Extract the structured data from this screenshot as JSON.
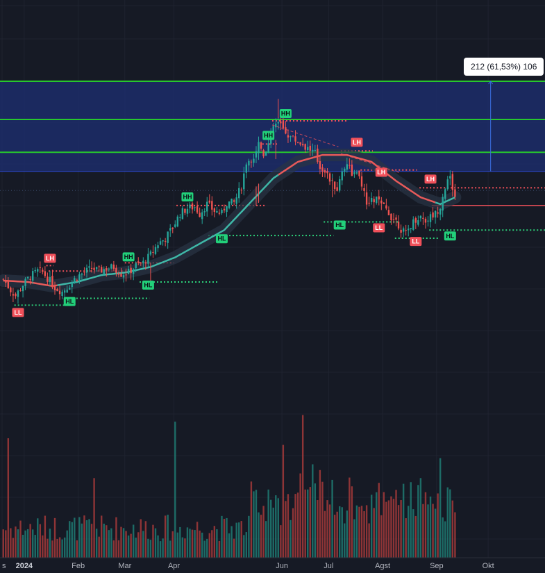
{
  "measure_label": "212 (61,53%) 106",
  "chart_data": {
    "type": "candlestick",
    "x_axis_labels": [
      {
        "text": "s",
        "index": 0,
        "bold": false
      },
      {
        "text": "2024",
        "index": 9,
        "bold": true
      },
      {
        "text": "Feb",
        "index": 31,
        "bold": false
      },
      {
        "text": "Mar",
        "index": 50,
        "bold": false
      },
      {
        "text": "Apr",
        "index": 70,
        "bold": false
      },
      {
        "text": "Jun",
        "index": 114,
        "bold": false
      },
      {
        "text": "Jul",
        "index": 133,
        "bold": false
      },
      {
        "text": "Agst",
        "index": 155,
        "bold": false
      },
      {
        "text": "Sep",
        "index": 177,
        "bold": false
      },
      {
        "text": "Okt",
        "index": 198,
        "bold": false
      }
    ],
    "ylim": [
      158,
      400
    ],
    "price_anchors": [
      [
        0,
        246
      ],
      [
        3,
        238
      ],
      [
        5,
        234
      ],
      [
        8,
        242
      ],
      [
        11,
        248
      ],
      [
        14,
        252
      ],
      [
        16,
        251
      ],
      [
        18,
        247
      ],
      [
        21,
        240
      ],
      [
        24,
        237
      ],
      [
        27,
        242
      ],
      [
        30,
        248
      ],
      [
        33,
        251
      ],
      [
        36,
        254
      ],
      [
        39,
        252
      ],
      [
        42,
        254
      ],
      [
        45,
        255
      ],
      [
        48,
        250
      ],
      [
        51,
        251
      ],
      [
        54,
        256
      ],
      [
        57,
        258
      ],
      [
        60,
        264
      ],
      [
        63,
        272
      ],
      [
        66,
        276
      ],
      [
        69,
        284
      ],
      [
        72,
        294
      ],
      [
        75,
        298
      ],
      [
        78,
        299
      ],
      [
        80,
        294
      ],
      [
        83,
        301
      ],
      [
        86,
        296
      ],
      [
        89,
        294
      ],
      [
        91,
        302
      ],
      [
        94,
        302
      ],
      [
        97,
        314
      ],
      [
        99,
        332
      ],
      [
        102,
        336
      ],
      [
        104,
        346
      ],
      [
        106,
        338
      ],
      [
        108,
        345
      ],
      [
        110,
        358
      ],
      [
        112,
        360
      ],
      [
        114,
        356
      ],
      [
        116,
        352
      ],
      [
        118,
        349
      ],
      [
        121,
        346
      ],
      [
        124,
        342
      ],
      [
        127,
        338
      ],
      [
        129,
        328
      ],
      [
        131,
        326
      ],
      [
        132,
        322
      ],
      [
        134,
        316
      ],
      [
        136,
        312
      ],
      [
        138,
        325
      ],
      [
        140,
        332
      ],
      [
        142,
        324
      ],
      [
        144,
        322
      ],
      [
        146,
        316
      ],
      [
        148,
        300
      ],
      [
        150,
        303
      ],
      [
        152,
        305
      ],
      [
        154,
        300
      ],
      [
        156,
        297
      ],
      [
        158,
        292
      ],
      [
        160,
        289
      ],
      [
        162,
        283
      ],
      [
        164,
        279
      ],
      [
        166,
        286
      ],
      [
        168,
        290
      ],
      [
        170,
        292
      ],
      [
        172,
        289
      ],
      [
        174,
        292
      ],
      [
        176,
        294
      ],
      [
        178,
        300
      ],
      [
        180,
        314
      ],
      [
        182,
        320
      ],
      [
        184,
        306
      ]
    ],
    "last_index": 184,
    "total_slots": 222,
    "moving_average": [
      [
        0,
        245
      ],
      [
        10,
        244
      ],
      [
        20,
        241
      ],
      [
        30,
        244
      ],
      [
        40,
        249
      ],
      [
        50,
        251
      ],
      [
        60,
        255
      ],
      [
        70,
        262
      ],
      [
        80,
        272
      ],
      [
        90,
        282
      ],
      [
        100,
        301
      ],
      [
        110,
        320
      ],
      [
        120,
        332
      ],
      [
        130,
        337
      ],
      [
        140,
        337
      ],
      [
        150,
        332
      ],
      [
        160,
        318
      ],
      [
        170,
        306
      ],
      [
        178,
        301
      ],
      [
        184,
        306
      ]
    ],
    "structure_labels": [
      {
        "text": "LL",
        "index": 6,
        "price": 226,
        "color": "red",
        "pos": "below"
      },
      {
        "text": "LH",
        "index": 19,
        "price": 257,
        "color": "red",
        "pos": "above"
      },
      {
        "text": "HL",
        "index": 27,
        "price": 234,
        "color": "green",
        "pos": "below"
      },
      {
        "text": "HH",
        "index": 51,
        "price": 258,
        "color": "green",
        "pos": "above"
      },
      {
        "text": "HL",
        "index": 59,
        "price": 246,
        "color": "green",
        "pos": "below"
      },
      {
        "text": "HH",
        "index": 75,
        "price": 302,
        "color": "green",
        "pos": "above"
      },
      {
        "text": "HL",
        "index": 89,
        "price": 280,
        "color": "green",
        "pos": "below"
      },
      {
        "text": "HH",
        "index": 108,
        "price": 347,
        "color": "green",
        "pos": "above"
      },
      {
        "text": "HH",
        "index": 115,
        "price": 363,
        "color": "green",
        "pos": "above"
      },
      {
        "text": "HL",
        "index": 137,
        "price": 290,
        "color": "green",
        "pos": "below"
      },
      {
        "text": "LH",
        "index": 144,
        "price": 342,
        "color": "red",
        "pos": "above"
      },
      {
        "text": "LH",
        "index": 154,
        "price": 320,
        "color": "red",
        "pos": "above"
      },
      {
        "text": "LL",
        "index": 153,
        "price": 288,
        "color": "red",
        "pos": "below"
      },
      {
        "text": "LH",
        "index": 174,
        "price": 315,
        "color": "red",
        "pos": "above"
      },
      {
        "text": "LL",
        "index": 168,
        "price": 278,
        "color": "red",
        "pos": "below"
      },
      {
        "text": "HL",
        "index": 182,
        "price": 282,
        "color": "green",
        "pos": "below"
      }
    ],
    "horizontal_levels": [
      {
        "price": 391,
        "color": "#27c72d",
        "style": "solid",
        "width": 2
      },
      {
        "price": 363,
        "color": "#27c72d",
        "style": "solid",
        "width": 2
      },
      {
        "price": 339,
        "color": "#27c72d",
        "style": "solid",
        "width": 2
      },
      {
        "price": 325,
        "color": "#2e4ad6",
        "style": "solid",
        "width": 1
      }
    ],
    "highlight_zone": {
      "from": 325,
      "to": 391,
      "color": "#1e2f73"
    },
    "dotted_levels": [
      {
        "price": 227,
        "i0": 5,
        "i1": 29,
        "color": "#2dd17a"
      },
      {
        "price": 256,
        "i0": 18,
        "i1": 21,
        "color": "#f0505a"
      },
      {
        "price": 252,
        "i0": 19,
        "i1": 51,
        "color": "#f0505a"
      },
      {
        "price": 232,
        "i0": 26,
        "i1": 60,
        "color": "#2dd17a"
      },
      {
        "price": 244,
        "i0": 56,
        "i1": 88,
        "color": "#2dd17a"
      },
      {
        "price": 258,
        "i0": 50,
        "i1": 70,
        "color": "#f0505a"
      },
      {
        "price": 300,
        "i0": 71,
        "i1": 107,
        "color": "#f0505a"
      },
      {
        "price": 278,
        "i0": 84,
        "i1": 135,
        "color": "#2dd17a"
      },
      {
        "price": 345,
        "i0": 106,
        "i1": 112,
        "color": "#f0505a"
      },
      {
        "price": 362,
        "i0": 110,
        "i1": 141,
        "color": "#f0505a"
      },
      {
        "price": 288,
        "i0": 131,
        "i1": 162,
        "color": "#2dd17a"
      },
      {
        "price": 340,
        "i0": 138,
        "i1": 151,
        "color": "#f0505a"
      },
      {
        "price": 326,
        "i0": 146,
        "i1": 169,
        "color": "#f0505a"
      },
      {
        "price": 276,
        "i0": 160,
        "i1": 178,
        "color": "#2dd17a"
      },
      {
        "price": 282,
        "i0": 174,
        "i1": 222,
        "color": "#2dd17a"
      },
      {
        "price": 313,
        "i0": 170,
        "i1": 222,
        "color": "#f0505a"
      }
    ],
    "solid_red_level": {
      "price": 300,
      "i0": 175,
      "i1": 222,
      "color": "#f0505a"
    },
    "trend_lines": [
      {
        "i0": 110,
        "p0": 359,
        "i1": 137,
        "p1": 343,
        "color": "#f0505a"
      },
      {
        "i0": 138,
        "p0": 338,
        "i1": 162,
        "p1": 324,
        "color": "#f0505a"
      }
    ],
    "measure_tool": {
      "index": 199,
      "from": 325,
      "to": 391
    },
    "volume_max": 225
  }
}
